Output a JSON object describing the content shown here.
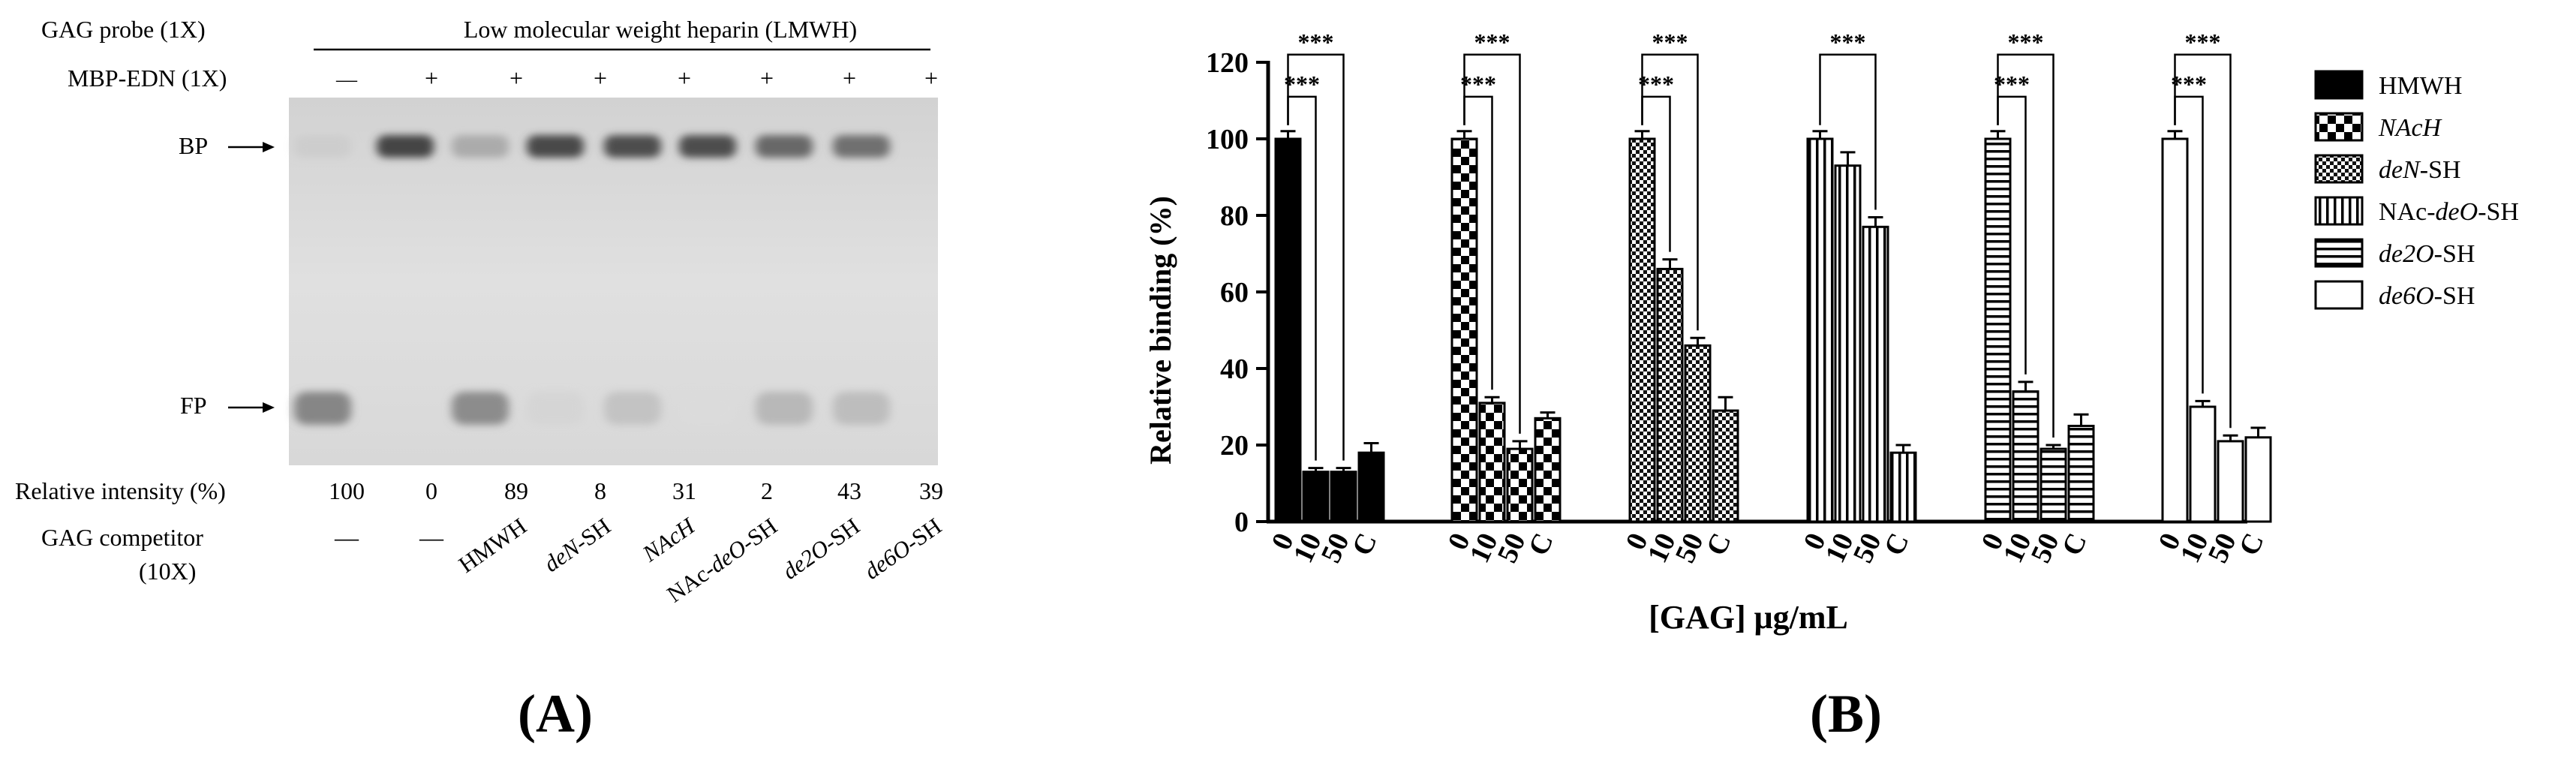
{
  "panel_a": {
    "gag_probe_label": "GAG probe (1X)",
    "gag_probe_value": "Low molecular weight heparin (LMWH)",
    "mbp_label": "MBP-EDN (1X)",
    "mbp_signs": [
      "—",
      "+",
      "+",
      "+",
      "+",
      "+",
      "+",
      "+"
    ],
    "bp_label": "BP",
    "fp_label": "FP",
    "intensity_label": "Relative intensity (%)",
    "intensities": [
      "100",
      "0",
      "89",
      "8",
      "31",
      "2",
      "43",
      "39"
    ],
    "competitor_label": "GAG competitor",
    "competitor_sub": "(10X)",
    "competitor_dash1": "—",
    "competitor_dash2": "—",
    "competitors": [
      {
        "pre": "HMWH",
        "it": "",
        "post": ""
      },
      {
        "pre": "",
        "it": "deN",
        "post": "-SH"
      },
      {
        "pre": "",
        "it": "NAcH",
        "post": ""
      },
      {
        "pre": "NAc-",
        "it": "deO",
        "post": "-SH"
      },
      {
        "pre": "",
        "it": "de2O",
        "post": "-SH"
      },
      {
        "pre": "",
        "it": "de6O",
        "post": "-SH"
      }
    ],
    "caption": "(A)",
    "gel": {
      "bp_band_strength": [
        0.15,
        0.95,
        0.35,
        0.92,
        0.9,
        0.9,
        0.75,
        0.7
      ],
      "fp_band_strength": [
        0.8,
        0.0,
        0.75,
        0.08,
        0.25,
        0.03,
        0.35,
        0.3
      ]
    }
  },
  "panel_b": {
    "caption": "(B)",
    "significance": "***",
    "x_ticks": [
      "0",
      "10",
      "50",
      "C"
    ],
    "legend": [
      {
        "pre": "HMWH",
        "it": "",
        "post": "",
        "pattern": "solid"
      },
      {
        "pre": "",
        "it": "NAcH",
        "post": "",
        "pattern": "checker"
      },
      {
        "pre": "",
        "it": "deN",
        "post": "-SH",
        "pattern": "fine-checker"
      },
      {
        "pre": "NAc-",
        "it": "deO",
        "post": "-SH",
        "pattern": "vertical"
      },
      {
        "pre": "",
        "it": "de2O",
        "post": "-SH",
        "pattern": "horizontal"
      },
      {
        "pre": "",
        "it": "de6O",
        "post": "-SH",
        "pattern": "white"
      }
    ]
  },
  "chart_data": {
    "type": "bar",
    "title": "",
    "xlabel": "[GAG] μg/mL",
    "ylabel": "Relative binding (%)",
    "ylim": [
      0,
      120
    ],
    "yticks": [
      0,
      20,
      40,
      60,
      80,
      100,
      120
    ],
    "categories": [
      "0",
      "10",
      "50",
      "C"
    ],
    "legend_position": "right",
    "series": [
      {
        "name": "HMWH",
        "values": [
          100,
          13,
          13,
          18
        ],
        "errors": [
          2,
          1,
          1,
          2.5
        ],
        "pattern": "solid",
        "sig_brackets": [
          "10",
          "50"
        ]
      },
      {
        "name": "NAcH",
        "values": [
          100,
          31,
          19,
          27
        ],
        "errors": [
          2,
          1.5,
          2,
          1.5
        ],
        "pattern": "checker",
        "sig_brackets": [
          "10",
          "50"
        ]
      },
      {
        "name": "deN-SH",
        "values": [
          100,
          66,
          46,
          29
        ],
        "errors": [
          2,
          2.5,
          2,
          3.5
        ],
        "pattern": "fine-checker",
        "sig_brackets": [
          "10",
          "50"
        ]
      },
      {
        "name": "NAc-deO-SH",
        "values": [
          100,
          93,
          77,
          18
        ],
        "errors": [
          2,
          3.5,
          2.5,
          2
        ],
        "pattern": "vertical",
        "sig_brackets": [
          "50"
        ]
      },
      {
        "name": "de2O-SH",
        "values": [
          100,
          34,
          19,
          25
        ],
        "errors": [
          2,
          2.5,
          1,
          3
        ],
        "pattern": "horizontal",
        "sig_brackets": [
          "10",
          "50"
        ]
      },
      {
        "name": "de6O-SH",
        "values": [
          100,
          30,
          21,
          22
        ],
        "errors": [
          2,
          1.5,
          1.5,
          2.5
        ],
        "pattern": "white",
        "sig_brackets": [
          "10",
          "50"
        ]
      }
    ]
  }
}
